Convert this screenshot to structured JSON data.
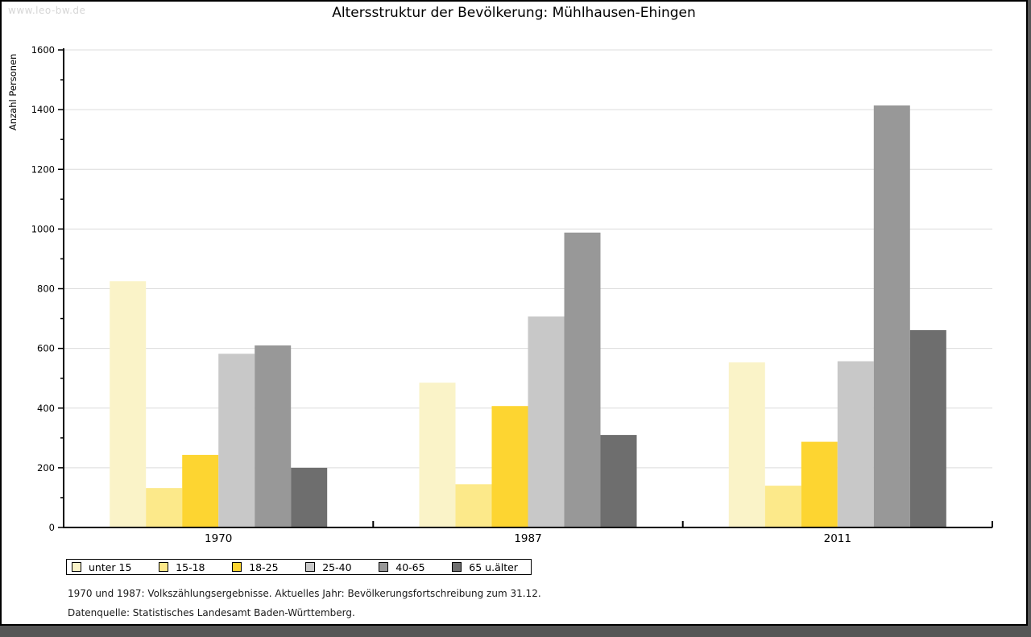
{
  "watermark": "www.leo-bw.de",
  "title": "Altersstruktur der Bevölkerung: Mühlhausen-Ehingen",
  "footnotes": [
    "1970 und 1987: Volkszählungsergebnisse. Aktuelles Jahr: Bevölkerungsfortschreibung zum 31.12.",
    "Datenquelle: Statistisches Landesamt Baden-Württemberg."
  ],
  "colors": {
    "background": "#ffffff",
    "frame_band": "#565656",
    "axis": "#000000",
    "gridline": "#dcdcdc",
    "watermark": "#d6d6d6"
  },
  "chart_data": {
    "type": "bar",
    "title": "Altersstruktur der Bevölkerung: Mühlhausen-Ehingen",
    "xlabel": "",
    "ylabel": "Anzahl Personen",
    "categories": [
      "1970",
      "1987",
      "2011"
    ],
    "series": [
      {
        "name": "unter 15",
        "color": "#faf3c8",
        "values": [
          825,
          485,
          553
        ]
      },
      {
        "name": "15-18",
        "color": "#fce98a",
        "values": [
          132,
          145,
          140
        ]
      },
      {
        "name": "18-25",
        "color": "#fdd531",
        "values": [
          243,
          407,
          287
        ]
      },
      {
        "name": "25-40",
        "color": "#c8c8c8",
        "values": [
          582,
          707,
          557
        ]
      },
      {
        "name": "40-65",
        "color": "#989898",
        "values": [
          610,
          988,
          1414
        ]
      },
      {
        "name": "65 u.älter",
        "color": "#6e6e6e",
        "values": [
          200,
          310,
          661
        ]
      }
    ],
    "ylim": [
      0,
      1600
    ],
    "ytick_major": 200,
    "ytick_minor": 100,
    "grid": true,
    "legend_position": "bottom-left"
  }
}
